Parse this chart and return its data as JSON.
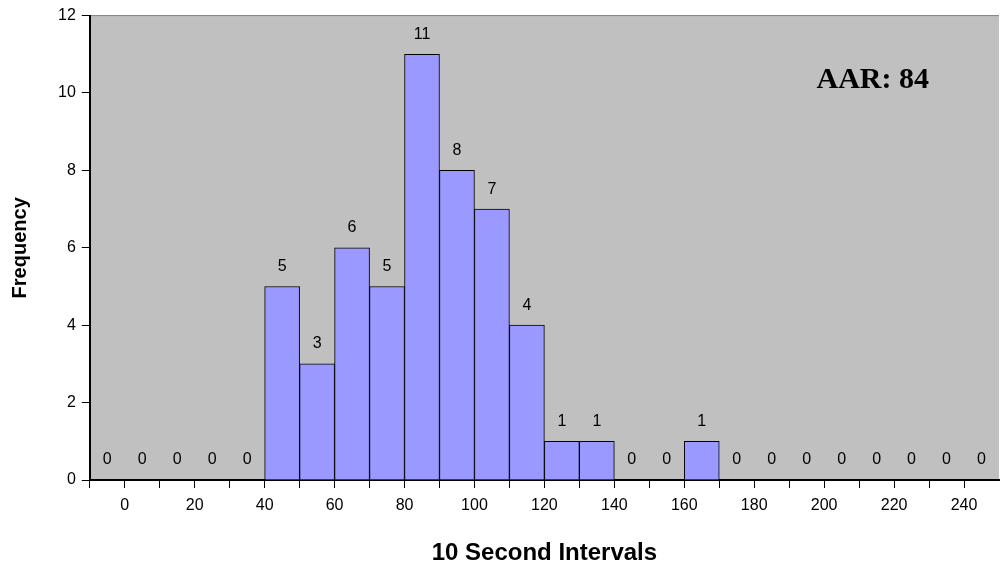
{
  "chart_data": {
    "type": "histogram",
    "xlabel": "10 Second Intervals",
    "ylabel": "Frequency",
    "annotations": [
      "AAR: 84"
    ],
    "bins": [
      -10,
      0,
      10,
      20,
      30,
      40,
      50,
      60,
      70,
      80,
      90,
      100,
      110,
      120,
      130,
      140,
      150,
      160,
      170,
      180,
      190,
      200,
      210,
      220,
      230,
      240,
      250
    ],
    "values": [
      0,
      0,
      0,
      0,
      0,
      5,
      3,
      6,
      5,
      11,
      8,
      7,
      4,
      1,
      1,
      0,
      0,
      1,
      0,
      0,
      0,
      0,
      0,
      0,
      0,
      0
    ],
    "color": "#9999ff",
    "xlim": [
      -10,
      250
    ],
    "xticks": [
      {
        "value": -10,
        "label": null
      },
      0,
      {
        "value": 10,
        "label": null
      },
      20,
      {
        "value": 30,
        "label": null
      },
      40,
      {
        "value": 50,
        "label": null
      },
      60,
      {
        "value": 70,
        "label": null
      },
      80,
      {
        "value": 90,
        "label": null
      },
      100,
      {
        "value": 110,
        "label": null
      },
      120,
      {
        "value": 130,
        "label": null
      },
      140,
      {
        "value": 150,
        "label": null
      },
      160,
      {
        "value": 170,
        "label": null
      },
      180,
      {
        "value": 190,
        "label": null
      },
      200,
      {
        "value": 210,
        "label": null
      },
      220,
      {
        "value": 230,
        "label": null
      },
      240
    ],
    "ylim": [
      0,
      12
    ],
    "yticks": [
      0,
      2,
      4,
      6,
      8,
      10,
      12
    ],
    "grid": false,
    "legend": false,
    "data_labels": true
  }
}
